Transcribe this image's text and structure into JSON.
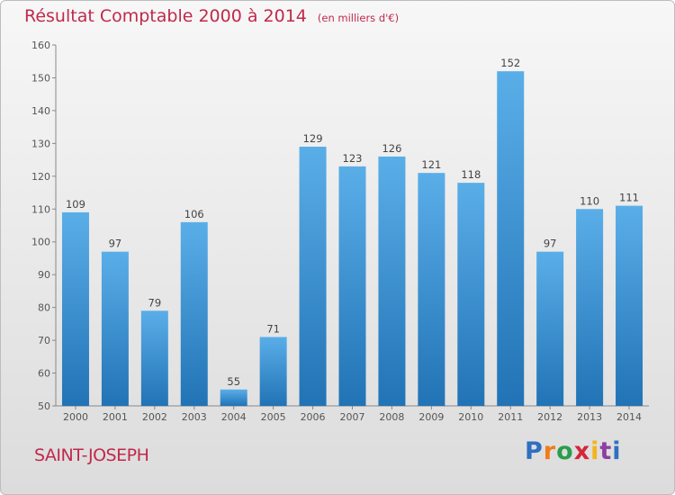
{
  "header": {
    "title": "Résultat Comptable 2000 à 2014",
    "unit": "(en milliers d'€)"
  },
  "footer": {
    "commune": "SAINT-JOSEPH",
    "brand": "Proxiti",
    "brand_colors": [
      "#2e6fc1",
      "#f07c1c",
      "#2a9d4c",
      "#d4263a",
      "#f2b51b",
      "#8e3fa1",
      "#2e6fc1"
    ]
  },
  "colors": {
    "bar_light": "#5aaee8",
    "bar_dark": "#2173b5",
    "title": "#c0294a",
    "axis": "#555555"
  },
  "chart_data": {
    "type": "bar",
    "title": "Résultat Comptable 2000 à 2014",
    "subtitle": "(en milliers d'€)",
    "categories": [
      "2000",
      "2001",
      "2002",
      "2003",
      "2004",
      "2005",
      "2006",
      "2007",
      "2008",
      "2009",
      "2010",
      "2011",
      "2012",
      "2013",
      "2014"
    ],
    "values": [
      109,
      97,
      79,
      106,
      55,
      71,
      129,
      123,
      126,
      121,
      118,
      152,
      97,
      110,
      111
    ],
    "data_labels": [
      "109",
      "97",
      "79",
      "106",
      "55",
      "71",
      "129",
      "123",
      "126",
      "121",
      "118",
      "152",
      "97",
      "110",
      "111"
    ],
    "ylim": [
      50,
      160
    ],
    "yticks": [
      50,
      60,
      70,
      80,
      90,
      100,
      110,
      120,
      130,
      140,
      150,
      160
    ],
    "ytick_labels": [
      "50",
      "60",
      "70",
      "80",
      "90",
      "100",
      "110",
      "120",
      "130",
      "140",
      "150",
      "160"
    ],
    "grid": false,
    "legend": "none"
  }
}
